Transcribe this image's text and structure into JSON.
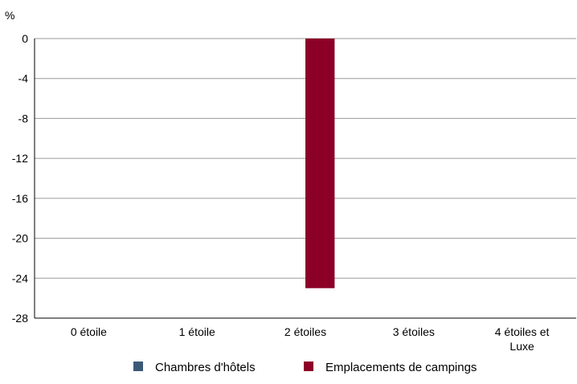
{
  "chart_data": {
    "type": "bar",
    "y_unit": "%",
    "categories": [
      "0 étoile",
      "1 étoile",
      "2 étoiles",
      "3 étoiles",
      "4 étoiles et Luxe"
    ],
    "category_lines": [
      [
        "0 étoile"
      ],
      [
        "1 étoile"
      ],
      [
        "2 étoiles"
      ],
      [
        "3 étoiles"
      ],
      [
        "4 étoiles et",
        "Luxe"
      ]
    ],
    "series": [
      {
        "name": "Chambres d'hôtels",
        "color": "#3c5a78",
        "values": [
          null,
          null,
          null,
          null,
          null
        ]
      },
      {
        "name": "Emplacements de campings",
        "color": "#8c0028",
        "values": [
          null,
          null,
          -25,
          null,
          null
        ]
      }
    ],
    "ylim": [
      -28,
      0
    ],
    "yticks": [
      0,
      -4,
      -8,
      -12,
      -16,
      -20,
      -24,
      -28
    ],
    "grid": true,
    "legend_position": "bottom"
  }
}
